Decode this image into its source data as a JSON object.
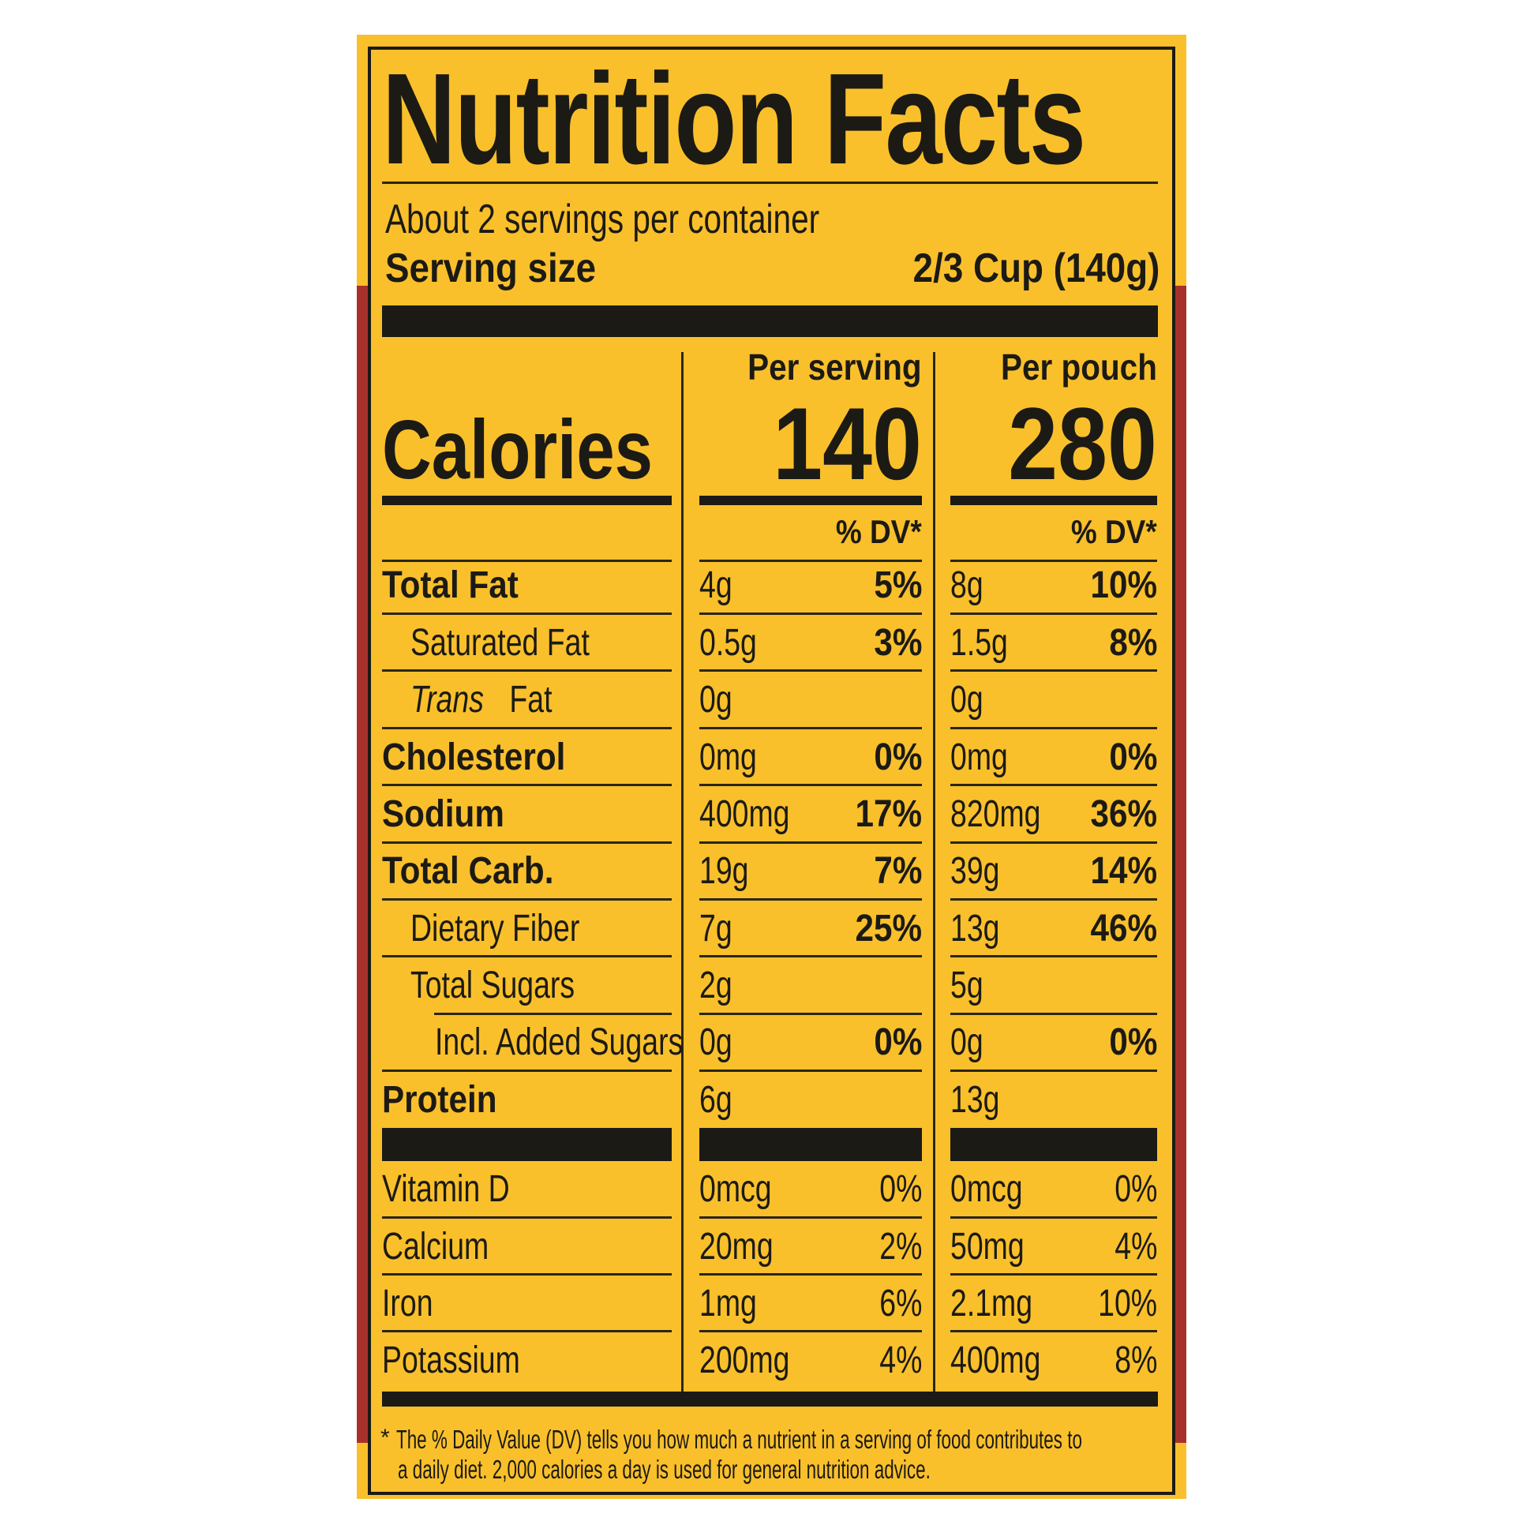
{
  "title": "Nutrition Facts",
  "servings": "About 2 servings per container",
  "serving_size": {
    "label": "Serving size",
    "value": "2/3 Cup (140g)"
  },
  "calories": {
    "label": "Calories",
    "columns": [
      {
        "header": "Per serving",
        "value": "140"
      },
      {
        "header": "Per pouch",
        "value": "280"
      }
    ]
  },
  "dv_header": "% DV*",
  "nutrients": [
    {
      "name": "Total Fat",
      "bold": true,
      "indent": 0,
      "values": [
        [
          "4g",
          "5%"
        ],
        [
          "8g",
          "10%"
        ]
      ]
    },
    {
      "name": "Saturated Fat",
      "bold": false,
      "indent": 1,
      "values": [
        [
          "0.5g",
          "3%"
        ],
        [
          "1.5g",
          "8%"
        ]
      ]
    },
    {
      "name_italic": "Trans",
      "name": " Fat",
      "bold": false,
      "indent": 1,
      "values": [
        [
          "0g",
          ""
        ],
        [
          "0g",
          ""
        ]
      ]
    },
    {
      "name": "Cholesterol",
      "bold": true,
      "indent": 0,
      "values": [
        [
          "0mg",
          "0%"
        ],
        [
          "0mg",
          "0%"
        ]
      ]
    },
    {
      "name": "Sodium",
      "bold": true,
      "indent": 0,
      "values": [
        [
          "400mg",
          "17%"
        ],
        [
          "820mg",
          "36%"
        ]
      ]
    },
    {
      "name": "Total Carb.",
      "bold": true,
      "indent": 0,
      "values": [
        [
          "19g",
          "7%"
        ],
        [
          "39g",
          "14%"
        ]
      ]
    },
    {
      "name": "Dietary Fiber",
      "bold": false,
      "indent": 1,
      "values": [
        [
          "7g",
          "25%"
        ],
        [
          "13g",
          "46%"
        ]
      ]
    },
    {
      "name": "Total Sugars",
      "bold": false,
      "indent": 1,
      "values": [
        [
          "2g",
          ""
        ],
        [
          "5g",
          ""
        ]
      ]
    },
    {
      "name": "Incl. Added Sugars",
      "bold": false,
      "indent": 2,
      "values": [
        [
          "0g",
          "0%"
        ],
        [
          "0g",
          "0%"
        ]
      ]
    },
    {
      "name": "Protein",
      "bold": true,
      "indent": 0,
      "values": [
        [
          "6g",
          ""
        ],
        [
          "13g",
          ""
        ]
      ]
    }
  ],
  "vitamins": [
    {
      "name": "Vitamin D",
      "values": [
        [
          "0mcg",
          "0%"
        ],
        [
          "0mcg",
          "0%"
        ]
      ]
    },
    {
      "name": "Calcium",
      "values": [
        [
          "20mg",
          "2%"
        ],
        [
          "50mg",
          "4%"
        ]
      ]
    },
    {
      "name": "Iron",
      "values": [
        [
          "1mg",
          "6%"
        ],
        [
          "2.1mg",
          "10%"
        ]
      ]
    },
    {
      "name": "Potassium",
      "values": [
        [
          "200mg",
          "4%"
        ],
        [
          "400mg",
          "8%"
        ]
      ]
    }
  ],
  "footnote": {
    "mark": "*",
    "line1": "The % Daily Value (DV) tells you how much a nutrient in a serving of food contributes to",
    "line2": "a daily diet. 2,000 calories a day is used for general nutrition advice."
  },
  "colors": {
    "label_background": "#f9c02c",
    "side_strip": "#a8302b",
    "ink": "#1c1a14"
  }
}
